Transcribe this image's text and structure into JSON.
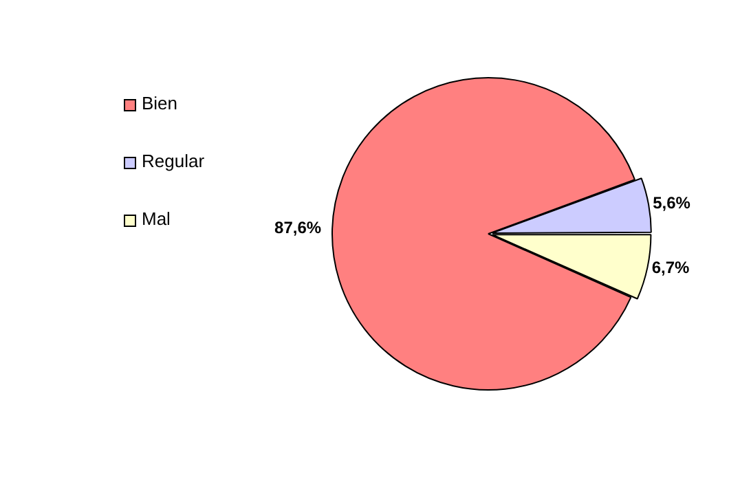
{
  "chart_data": {
    "type": "pie",
    "categories": [
      "Bien",
      "Regular",
      "Mal"
    ],
    "values": [
      87.6,
      5.6,
      6.7
    ],
    "colors": [
      "#ff8080",
      "#ccccff",
      "#ffffcc"
    ],
    "value_labels": [
      "87,6%",
      "5,6%",
      "6,7%"
    ],
    "legend": "left"
  }
}
